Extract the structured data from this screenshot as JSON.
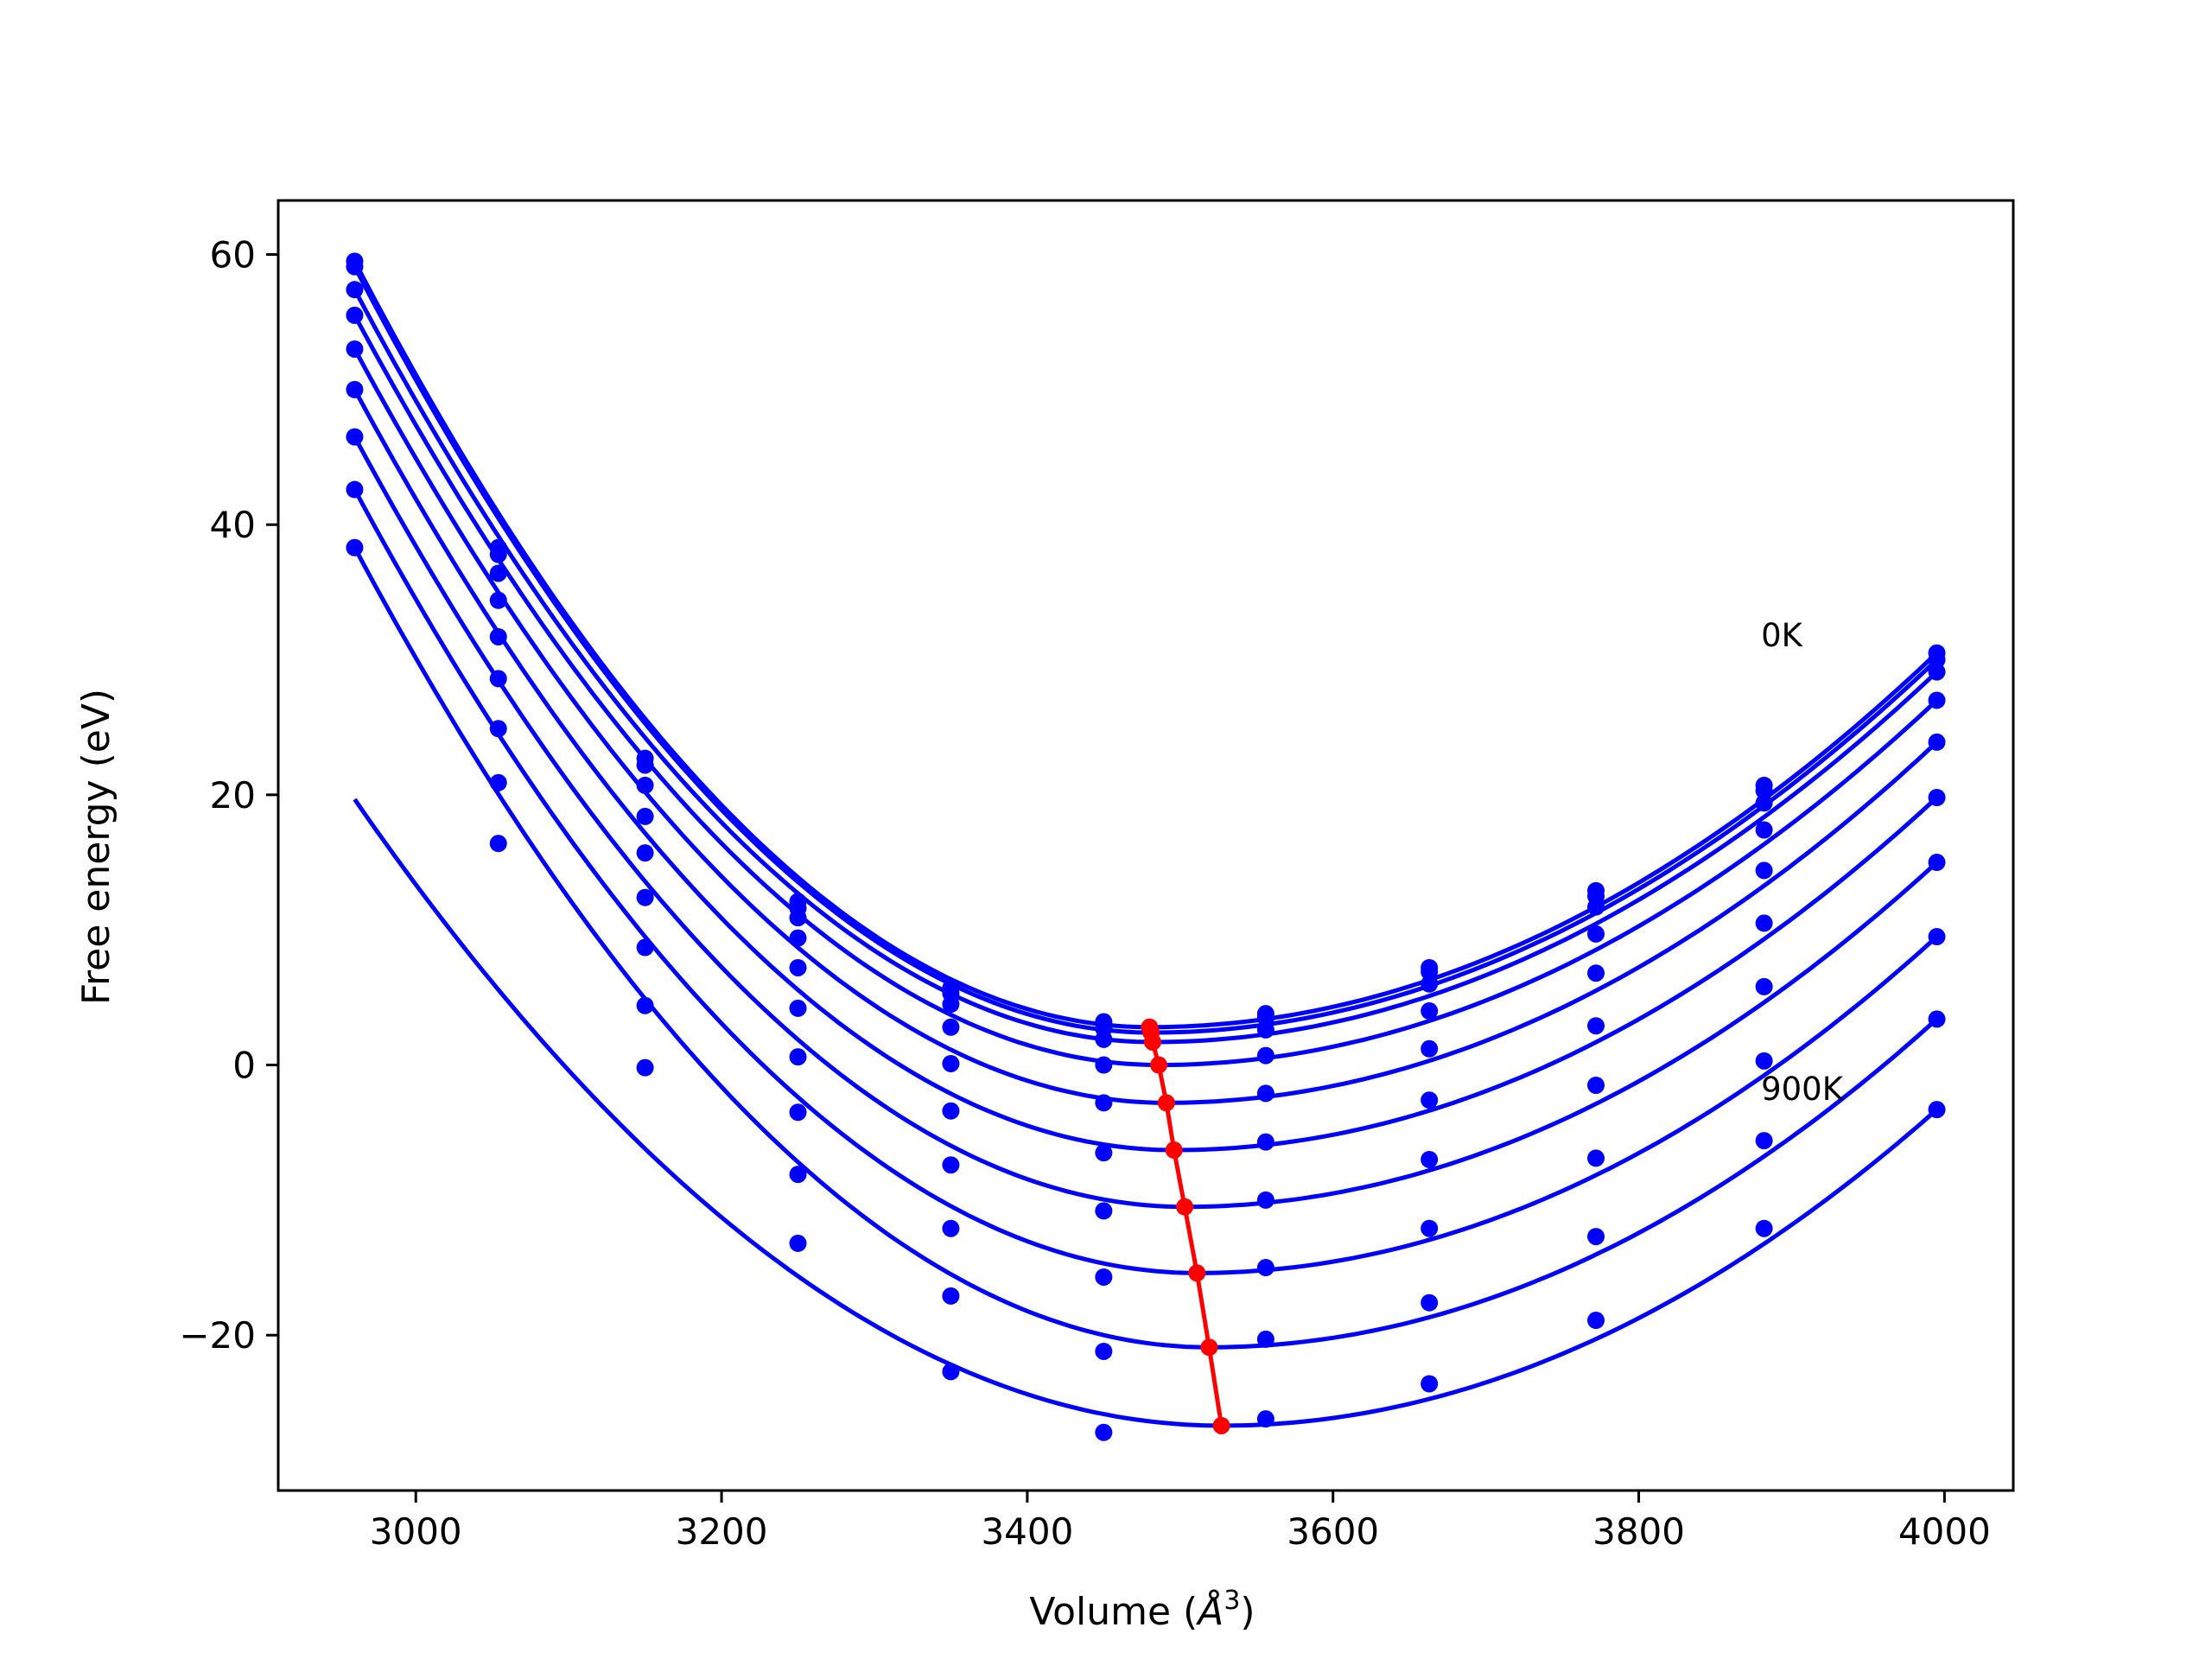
{
  "chart_data": {
    "type": "scatter",
    "xlabel_text": "Volume (",
    "xlabel_unit": "Å",
    "xlabel_power": "3",
    "xlabel_close": ")",
    "ylabel": "Free energy (eV)",
    "xlim": [
      2910,
      4045
    ],
    "ylim": [
      -31.5,
      64
    ],
    "xticks": [
      3000,
      3200,
      3400,
      3600,
      3800,
      4000
    ],
    "xtick_labels": [
      "3000",
      "3200",
      "3400",
      "3600",
      "3800",
      "4000"
    ],
    "yticks": [
      -20,
      0,
      20,
      40,
      60
    ],
    "ytick_labels": [
      "−20",
      "0",
      "20",
      "40",
      "60"
    ],
    "annotations": [
      {
        "text": "0K",
        "x": 3880,
        "y": 31
      },
      {
        "text": "900K",
        "x": 3880,
        "y": -2.6
      }
    ],
    "fit_color": "#0000ff",
    "point_color": "#0000ff",
    "minimum_line_color": "#ff0000",
    "x_points": [
      2960,
      3054,
      3150,
      3250,
      3350,
      3450,
      3556,
      3663,
      3772,
      3882,
      3995
    ],
    "series": [
      {
        "y": [
          59.5,
          38.3,
          22.7,
          12.1,
          5.7,
          3.2,
          3.8,
          7.2,
          12.9,
          20.7,
          30.5
        ],
        "min_v": 3480,
        "min_f": 2.8
      },
      {
        "y": [
          59.1,
          37.8,
          22.2,
          11.6,
          5.3,
          2.7,
          3.5,
          6.9,
          12.5,
          20.3,
          30.0
        ],
        "min_v": 3481,
        "min_f": 2.4
      },
      {
        "y": [
          57.4,
          36.4,
          20.7,
          10.9,
          4.5,
          1.9,
          2.6,
          6.0,
          11.7,
          19.4,
          29.1
        ],
        "min_v": 3482,
        "min_f": 1.7
      },
      {
        "y": [
          55.5,
          34.4,
          18.4,
          9.4,
          2.8,
          0.0,
          0.7,
          4.0,
          9.7,
          17.4,
          27.0
        ],
        "min_v": 3486,
        "min_f": 0.0
      },
      {
        "y": [
          53.0,
          31.7,
          15.7,
          7.2,
          0.1,
          -2.8,
          -2.1,
          1.2,
          6.8,
          14.4,
          23.9
        ],
        "min_v": 3491,
        "min_f": -2.8
      },
      {
        "y": [
          50.0,
          28.6,
          12.4,
          4.2,
          -3.4,
          -6.5,
          -5.7,
          -2.6,
          2.9,
          10.5,
          19.8
        ],
        "min_v": 3496,
        "min_f": -6.3
      },
      {
        "y": [
          46.5,
          24.9,
          8.7,
          0.6,
          -7.4,
          -10.8,
          -10.0,
          -7.0,
          -1.5,
          5.8,
          15.0
        ],
        "min_v": 3503,
        "min_f": -10.5
      },
      {
        "y": [
          42.6,
          20.9,
          4.4,
          -3.5,
          -12.1,
          -15.7,
          -15.0,
          -12.1,
          -6.9,
          0.3,
          9.5
        ],
        "min_v": 3511,
        "min_f": -15.4
      },
      {
        "y": [
          38.3,
          16.4,
          -0.2,
          -8.1,
          -17.1,
          -21.2,
          -20.3,
          -17.6,
          -12.7,
          -5.6,
          3.4
        ],
        "min_v": 3519,
        "min_f": -20.9
      },
      {
        "y": [
          null,
          null,
          null,
          -13.2,
          -22.7,
          -27.2,
          -26.2,
          -23.6,
          -18.9,
          -12.1,
          -3.3
        ],
        "min_v": 3527,
        "min_f": -26.7
      }
    ]
  }
}
